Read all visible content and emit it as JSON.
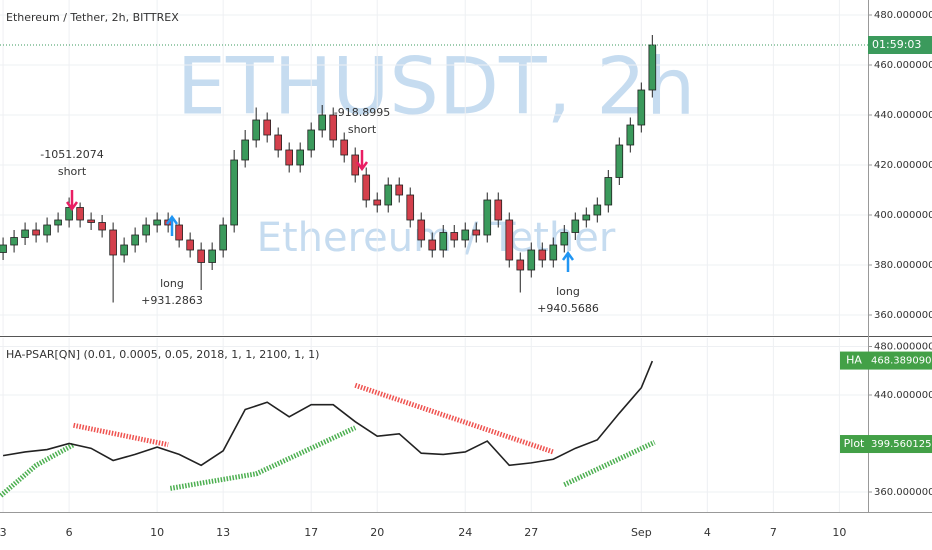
{
  "chart_data": [
    {
      "type": "candlestick",
      "title": "Ethereum / Tether, 2h, BITTREX",
      "watermark": [
        "ETHUSDT, 2h",
        "Ethereum / Tether"
      ],
      "timer": "01:59:03",
      "up_color": "#3b9a5c",
      "down_color": "#d4404c",
      "xlim": [
        2.86,
        42.3
      ],
      "xticks": [
        3,
        6,
        10,
        13,
        17,
        20,
        24,
        27,
        {
          "value": 32,
          "label": "Sep"
        },
        {
          "value": 35,
          "label": "4"
        },
        {
          "value": 38,
          "label": "7"
        },
        {
          "value": 41,
          "label": "10"
        }
      ],
      "ylim": [
        352,
        486
      ],
      "yticks": [
        {
          "value": 360,
          "label": "360.00000000"
        },
        {
          "value": 380,
          "label": "380.00000000"
        },
        {
          "value": 400,
          "label": "400.00000000"
        },
        {
          "value": 420,
          "label": "420.00000000"
        },
        {
          "value": 440,
          "label": "440.00000000"
        },
        {
          "value": 460,
          "label": "460.00000000"
        },
        {
          "value": 480,
          "label": "480.00000000"
        }
      ],
      "grid": true,
      "x": [
        3,
        3.5,
        4,
        4.5,
        5,
        5.5,
        6,
        6.5,
        7,
        7.5,
        8,
        8.5,
        9,
        9.5,
        10,
        10.5,
        11,
        11.5,
        12,
        12.5,
        13,
        13.5,
        14,
        14.5,
        15,
        15.5,
        16,
        16.5,
        17,
        17.5,
        18,
        18.5,
        19,
        19.5,
        20,
        20.5,
        21,
        21.5,
        22,
        22.5,
        23,
        23.5,
        24,
        24.5,
        25,
        25.5,
        26,
        26.5,
        27,
        27.5,
        28,
        28.5,
        29,
        29.5,
        30,
        30.5,
        31,
        31.5,
        32,
        32.5
      ],
      "open": [
        385,
        388,
        391,
        394,
        392,
        396,
        398,
        403,
        398,
        397,
        394,
        384,
        388,
        392,
        396,
        398,
        396,
        390,
        386,
        381,
        386,
        396,
        422,
        430,
        438,
        432,
        426,
        420,
        426,
        434,
        440,
        430,
        424,
        416,
        406,
        404,
        412,
        408,
        398,
        390,
        386,
        393,
        390,
        394,
        392,
        406,
        398,
        382,
        378,
        386,
        382,
        388,
        393,
        398,
        400,
        404,
        415,
        428,
        436,
        450
      ],
      "high": [
        391,
        394,
        397,
        397,
        399,
        401,
        407,
        405,
        401,
        400,
        397,
        391,
        395,
        399,
        401,
        401,
        399,
        393,
        389,
        389,
        399,
        426,
        434,
        443,
        441,
        435,
        429,
        429,
        437,
        444,
        443,
        433,
        427,
        419,
        409,
        415,
        415,
        411,
        401,
        393,
        396,
        396,
        397,
        397,
        409,
        409,
        401,
        385,
        389,
        389,
        391,
        396,
        401,
        403,
        407,
        418,
        431,
        439,
        453,
        472
      ],
      "low": [
        382,
        385,
        388,
        389,
        389,
        393,
        395,
        395,
        394,
        391,
        365,
        381,
        385,
        389,
        393,
        393,
        387,
        383,
        370,
        378,
        383,
        393,
        419,
        427,
        429,
        423,
        417,
        417,
        423,
        431,
        427,
        421,
        413,
        403,
        401,
        401,
        405,
        395,
        387,
        383,
        383,
        387,
        387,
        389,
        389,
        395,
        379,
        369,
        375,
        379,
        379,
        385,
        390,
        395,
        397,
        401,
        412,
        425,
        433,
        447
      ],
      "close": [
        388,
        391,
        394,
        392,
        396,
        398,
        403,
        398,
        397,
        394,
        384,
        388,
        392,
        396,
        398,
        396,
        390,
        386,
        381,
        386,
        396,
        422,
        430,
        438,
        432,
        426,
        420,
        426,
        434,
        440,
        430,
        424,
        416,
        406,
        404,
        412,
        408,
        398,
        390,
        386,
        393,
        390,
        394,
        392,
        406,
        398,
        382,
        378,
        386,
        382,
        388,
        393,
        398,
        400,
        404,
        415,
        428,
        436,
        450,
        468
      ],
      "annotations": [
        {
          "text": [
            "-1051.2074",
            "short"
          ],
          "kind": "short"
        },
        {
          "text": [
            "long",
            "+931.2863"
          ],
          "kind": "long"
        },
        {
          "text": [
            "-918.8995",
            "short"
          ],
          "kind": "short"
        },
        {
          "text": [
            "long",
            "+940.5686"
          ],
          "kind": "long"
        }
      ]
    },
    {
      "type": "line",
      "title": "HA-PSAR[QN] (0.01, 0.0005, 0.05, 2018, 1, 1, 2100, 1, 1)",
      "xlim": [
        2.86,
        42.3
      ],
      "ylim": [
        343.5,
        487
      ],
      "yticks": [
        {
          "value": 360,
          "label": "360.00000000"
        },
        {
          "value": 440,
          "label": "440.00000000"
        },
        {
          "value": 480,
          "label": "480.00000000"
        }
      ],
      "grid": true,
      "series": [
        {
          "color": "#222222",
          "x": [
            3,
            4,
            5,
            6,
            7,
            8,
            9,
            10,
            11,
            12,
            13,
            14,
            15,
            16,
            17,
            18,
            19,
            20,
            21,
            22,
            23,
            24,
            25,
            26,
            27,
            28,
            29,
            30,
            31,
            32,
            32.5
          ],
          "values": [
            390,
            393,
            395,
            400,
            396,
            386,
            391,
            397,
            391,
            382,
            394,
            428,
            434,
            422,
            432,
            432,
            418,
            406,
            408,
            392,
            391,
            393,
            402,
            382,
            384,
            387,
            396,
            403,
            425,
            446,
            468
          ]
        }
      ],
      "psar": [
        {
          "color": "#4caf50",
          "x": [
            2.9,
            4.5,
            6.2
          ],
          "values": [
            357,
            382,
            399
          ]
        },
        {
          "color": "#ef5350",
          "x": [
            6.2,
            10.5
          ],
          "values": [
            415,
            399
          ]
        },
        {
          "color": "#4caf50",
          "x": [
            10.6,
            14.5,
            19
          ],
          "values": [
            363,
            375,
            413
          ]
        },
        {
          "color": "#ef5350",
          "x": [
            19,
            28
          ],
          "values": [
            448,
            393
          ]
        },
        {
          "color": "#4caf50",
          "x": [
            28.5,
            32.6
          ],
          "values": [
            366,
            401
          ]
        }
      ],
      "badges": [
        {
          "label": "HA",
          "value": 468.38909035,
          "color": "#43a047"
        },
        {
          "label": "Plot",
          "value": 399.56012521,
          "color": "#43a047"
        }
      ]
    }
  ]
}
